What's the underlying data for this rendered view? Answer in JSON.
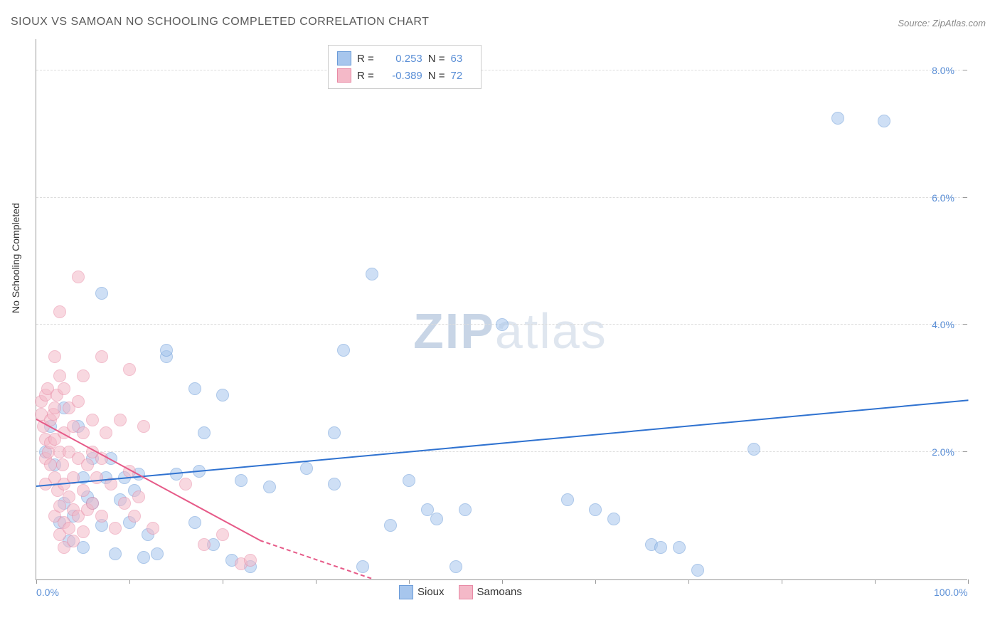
{
  "title": "SIOUX VS SAMOAN NO SCHOOLING COMPLETED CORRELATION CHART",
  "source": "Source: ZipAtlas.com",
  "ylabel": "No Schooling Completed",
  "watermark_bold": "ZIP",
  "watermark_light": "atlas",
  "chart": {
    "type": "scatter",
    "xlim": [
      0,
      100
    ],
    "ylim": [
      0,
      8.5
    ],
    "xticks": [
      0,
      10,
      20,
      30,
      40,
      50,
      60,
      70,
      80,
      90,
      100
    ],
    "xtick_labels": {
      "0": "0.0%",
      "100": "100.0%"
    },
    "yticks": [
      2.0,
      4.0,
      6.0,
      8.0
    ],
    "ytick_labels": [
      "2.0%",
      "4.0%",
      "6.0%",
      "8.0%"
    ],
    "grid_color": "#dddddd",
    "axis_color": "#999999",
    "background_color": "#ffffff",
    "tick_label_color": "#5b8fd6",
    "point_radius": 9,
    "point_opacity": 0.55,
    "series": [
      {
        "name": "Sioux",
        "fill": "#a7c6ed",
        "stroke": "#6a9bd8",
        "R": "0.253",
        "N": "63",
        "trend": {
          "x1": 0,
          "y1": 1.45,
          "x2": 100,
          "y2": 2.8,
          "color": "#2f72d0",
          "width": 2
        },
        "points": [
          [
            1,
            2.0
          ],
          [
            1.5,
            2.4
          ],
          [
            2,
            1.8
          ],
          [
            2.5,
            0.9
          ],
          [
            3,
            1.2
          ],
          [
            3,
            2.7
          ],
          [
            3.5,
            0.6
          ],
          [
            4,
            1.0
          ],
          [
            4.5,
            2.4
          ],
          [
            5,
            1.6
          ],
          [
            5,
            0.5
          ],
          [
            5.5,
            1.3
          ],
          [
            6,
            1.9
          ],
          [
            6,
            1.2
          ],
          [
            7,
            4.5
          ],
          [
            7,
            0.85
          ],
          [
            7.5,
            1.6
          ],
          [
            8,
            1.9
          ],
          [
            8.5,
            0.4
          ],
          [
            9,
            1.25
          ],
          [
            9.5,
            1.6
          ],
          [
            10,
            0.9
          ],
          [
            10.5,
            1.4
          ],
          [
            11,
            1.65
          ],
          [
            11.5,
            0.35
          ],
          [
            12,
            0.7
          ],
          [
            13,
            0.4
          ],
          [
            14,
            3.5
          ],
          [
            14,
            3.6
          ],
          [
            15,
            1.65
          ],
          [
            17,
            3.0
          ],
          [
            17,
            0.9
          ],
          [
            17.5,
            1.7
          ],
          [
            18,
            2.3
          ],
          [
            19,
            0.55
          ],
          [
            20,
            2.9
          ],
          [
            21,
            0.3
          ],
          [
            22,
            1.55
          ],
          [
            23,
            0.2
          ],
          [
            25,
            1.45
          ],
          [
            29,
            1.75
          ],
          [
            32,
            2.3
          ],
          [
            32,
            1.5
          ],
          [
            33,
            3.6
          ],
          [
            35,
            0.2
          ],
          [
            36,
            4.8
          ],
          [
            38,
            0.85
          ],
          [
            40,
            1.55
          ],
          [
            42,
            1.1
          ],
          [
            43,
            0.95
          ],
          [
            45,
            0.2
          ],
          [
            46,
            1.1
          ],
          [
            50,
            4.0
          ],
          [
            57,
            1.25
          ],
          [
            60,
            1.1
          ],
          [
            62,
            0.95
          ],
          [
            66,
            0.55
          ],
          [
            67,
            0.5
          ],
          [
            69,
            0.5
          ],
          [
            71,
            0.15
          ],
          [
            77,
            2.05
          ],
          [
            86,
            7.25
          ],
          [
            91,
            7.2
          ]
        ]
      },
      {
        "name": "Samoans",
        "fill": "#f4b9c8",
        "stroke": "#e88aa5",
        "R": "-0.389",
        "N": "72",
        "trend": {
          "x1": 0,
          "y1": 2.5,
          "x2": 24,
          "y2": 0.6,
          "color": "#e65a88",
          "width": 2,
          "dash_x2": 36,
          "dash_y2": -0.3
        },
        "points": [
          [
            0.5,
            2.8
          ],
          [
            0.5,
            2.6
          ],
          [
            0.8,
            2.4
          ],
          [
            1,
            2.9
          ],
          [
            1,
            2.2
          ],
          [
            1,
            1.9
          ],
          [
            1,
            1.5
          ],
          [
            1.2,
            3.0
          ],
          [
            1.3,
            2.0
          ],
          [
            1.5,
            2.5
          ],
          [
            1.5,
            2.15
          ],
          [
            1.5,
            1.8
          ],
          [
            1.8,
            2.6
          ],
          [
            2,
            3.5
          ],
          [
            2,
            2.7
          ],
          [
            2,
            2.2
          ],
          [
            2,
            1.6
          ],
          [
            2,
            1.0
          ],
          [
            2.2,
            2.9
          ],
          [
            2.3,
            1.4
          ],
          [
            2.5,
            4.2
          ],
          [
            2.5,
            3.2
          ],
          [
            2.5,
            2.0
          ],
          [
            2.5,
            1.15
          ],
          [
            2.5,
            0.7
          ],
          [
            2.8,
            1.8
          ],
          [
            3,
            3.0
          ],
          [
            3,
            2.3
          ],
          [
            3,
            1.5
          ],
          [
            3,
            0.9
          ],
          [
            3,
            0.5
          ],
          [
            3.5,
            2.7
          ],
          [
            3.5,
            2.0
          ],
          [
            3.5,
            1.3
          ],
          [
            3.5,
            0.8
          ],
          [
            4,
            2.4
          ],
          [
            4,
            1.6
          ],
          [
            4,
            1.1
          ],
          [
            4,
            0.6
          ],
          [
            4.5,
            4.75
          ],
          [
            4.5,
            2.8
          ],
          [
            4.5,
            1.9
          ],
          [
            4.5,
            1.0
          ],
          [
            5,
            3.2
          ],
          [
            5,
            2.3
          ],
          [
            5,
            1.4
          ],
          [
            5,
            0.75
          ],
          [
            5.5,
            1.8
          ],
          [
            5.5,
            1.1
          ],
          [
            6,
            2.5
          ],
          [
            6,
            2.0
          ],
          [
            6,
            1.2
          ],
          [
            6.5,
            1.6
          ],
          [
            7,
            3.5
          ],
          [
            7,
            1.9
          ],
          [
            7,
            1.0
          ],
          [
            7.5,
            2.3
          ],
          [
            8,
            1.5
          ],
          [
            8.5,
            0.8
          ],
          [
            9,
            2.5
          ],
          [
            9.5,
            1.2
          ],
          [
            10,
            3.3
          ],
          [
            10,
            1.7
          ],
          [
            10.5,
            1.0
          ],
          [
            11,
            1.3
          ],
          [
            11.5,
            2.4
          ],
          [
            12.5,
            0.8
          ],
          [
            16,
            1.5
          ],
          [
            18,
            0.55
          ],
          [
            20,
            0.7
          ],
          [
            22,
            0.25
          ],
          [
            23,
            0.3
          ]
        ]
      }
    ]
  },
  "legend_top": {
    "r_label": "R =",
    "n_label": "N ="
  },
  "legend_bottom": [
    {
      "label": "Sioux",
      "fill": "#a7c6ed",
      "stroke": "#6a9bd8"
    },
    {
      "label": "Samoans",
      "fill": "#f4b9c8",
      "stroke": "#e88aa5"
    }
  ]
}
